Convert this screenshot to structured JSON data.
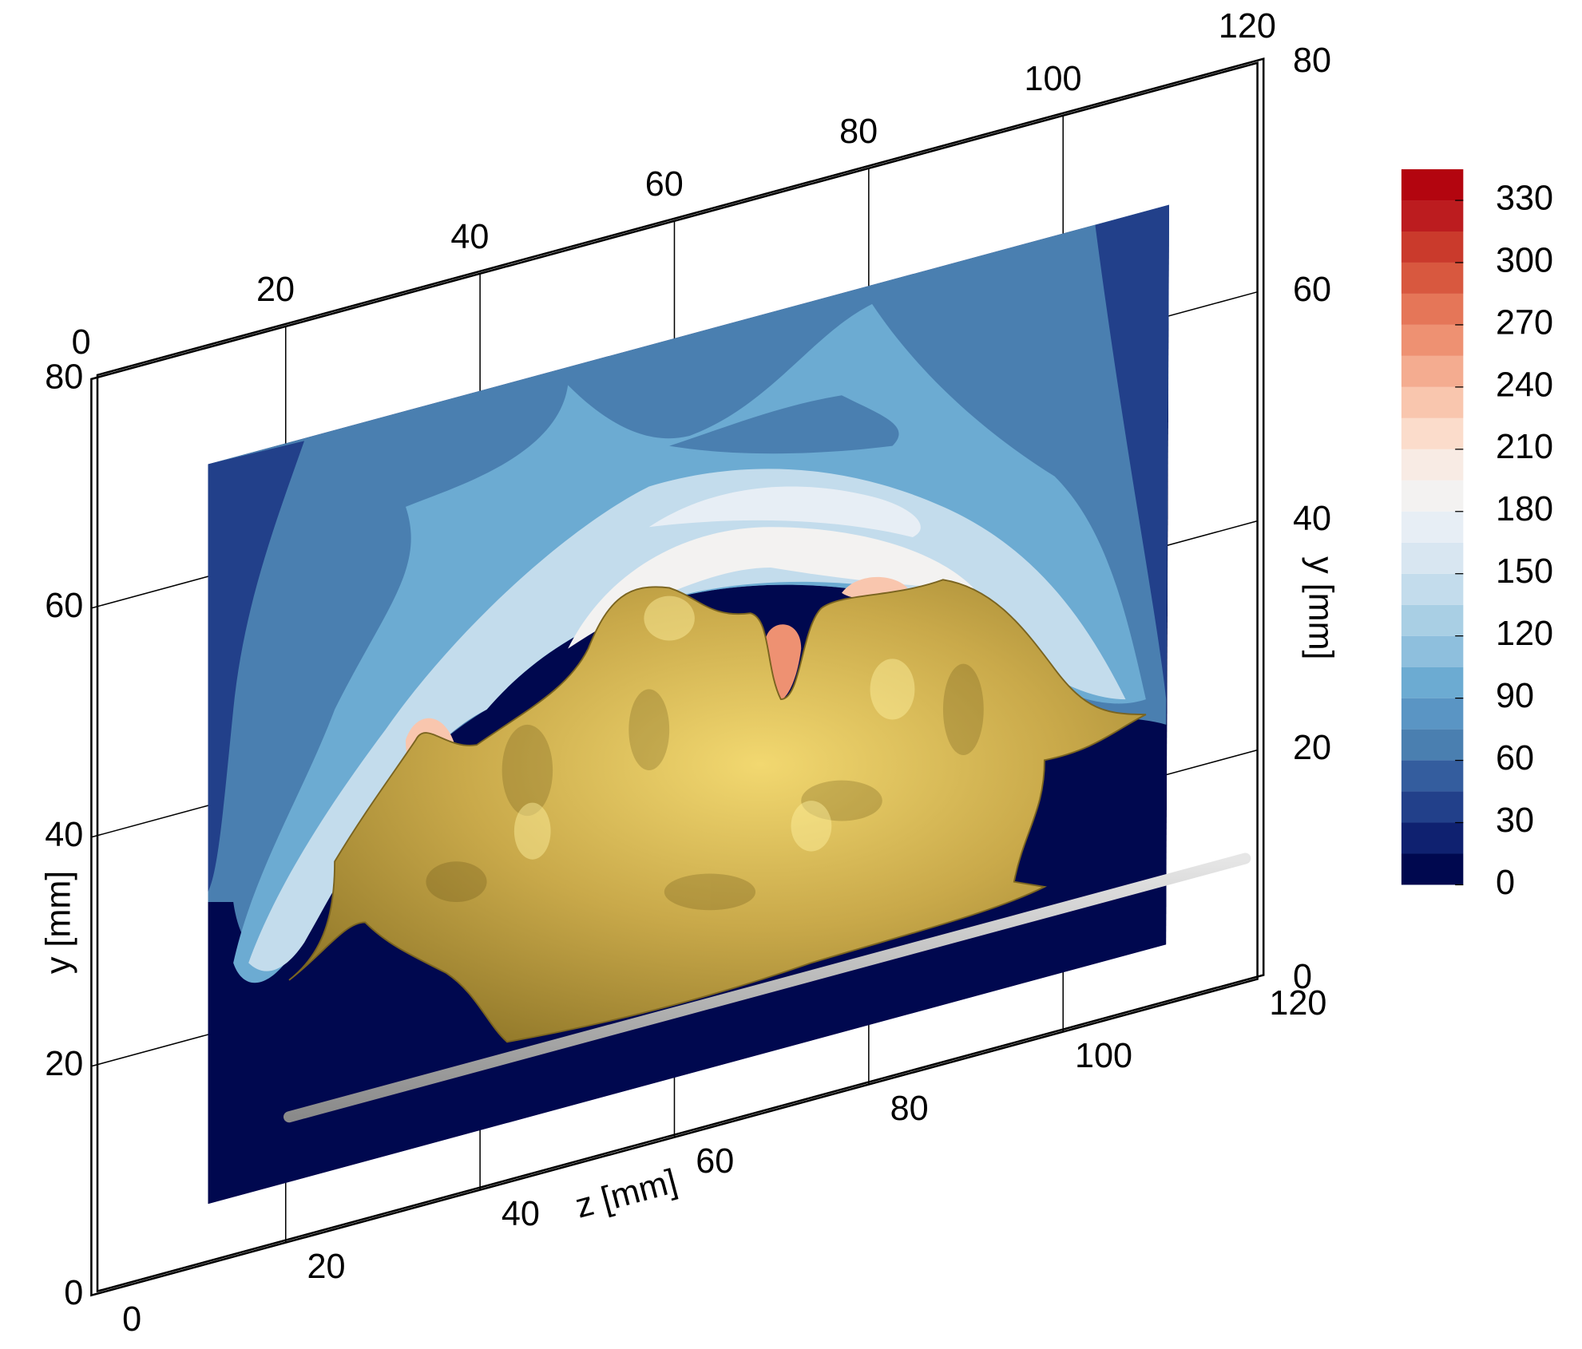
{
  "chart_data": {
    "type": "contour3d",
    "zlabel": "z [mm]",
    "ylabel": "y [mm]",
    "zlim": [
      0,
      120
    ],
    "zticks": [
      0,
      20,
      40,
      60,
      80,
      100,
      120
    ],
    "ylim": [
      0,
      80
    ],
    "yticks": [
      0,
      20,
      40,
      60,
      80
    ],
    "colorbar": {
      "clim": [
        0,
        345
      ],
      "levels": [
        0,
        15,
        30,
        45,
        60,
        75,
        90,
        105,
        120,
        135,
        150,
        165,
        180,
        195,
        210,
        225,
        240,
        255,
        270,
        285,
        300,
        315,
        330
      ],
      "colors": [
        "#00084f",
        "#0f2170",
        "#22408a",
        "#345d9e",
        "#4a7fb0",
        "#5a95c4",
        "#6cabd2",
        "#8ebfdd",
        "#a9cfe4",
        "#c3dcec",
        "#d8e6f1",
        "#e7eef5",
        "#f3f2f1",
        "#f8ebe4",
        "#fbdccb",
        "#f9c6ae",
        "#f4ac90",
        "#ee9172",
        "#e57658",
        "#d8583f",
        "#ca3a2c",
        "#bc1c1f",
        "#b3050f"
      ],
      "ticks": [
        0,
        30,
        60,
        90,
        120,
        150,
        180,
        210,
        240,
        270,
        300,
        330
      ]
    }
  }
}
